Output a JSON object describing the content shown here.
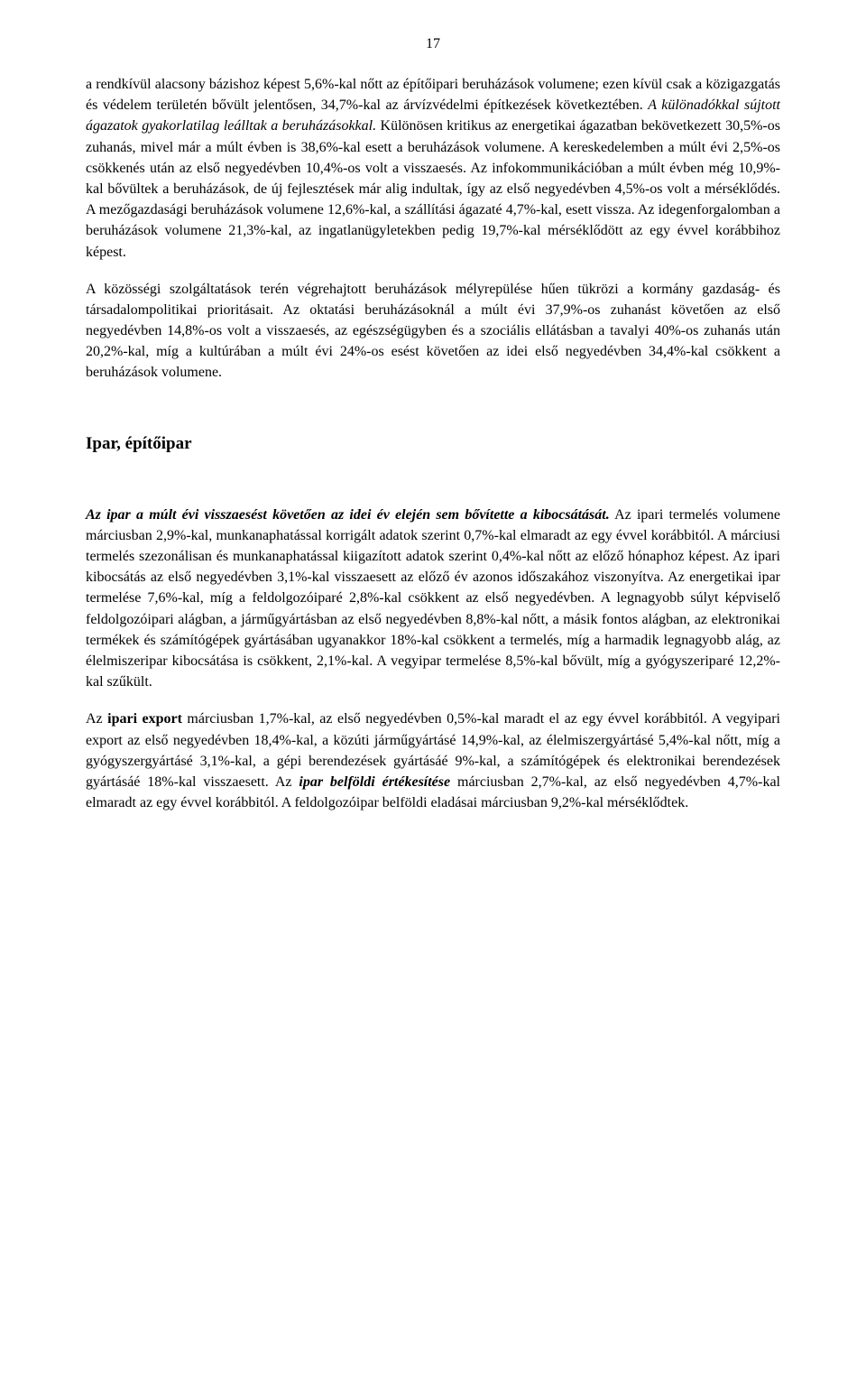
{
  "page_number": "17",
  "para1": {
    "t1": "a rendkívül alacsony bázishoz képest 5,6%-kal nőtt az építőipari beruházások volumene; ezen kívül csak a közigazgatás és védelem területén bővült jelentősen, 34,7%-kal az árvízvédelmi építkezések következtében. ",
    "t2_italic": "A különadókkal sújtott ágazatok gyakorlatilag leálltak a beruházásokkal.",
    "t3": " Különösen kritikus az energetikai ágazatban bekövetkezett 30,5%-os zuhanás, mivel már a múlt évben is 38,6%-kal esett a beruházások volumene. A kereskedelemben a múlt évi 2,5%-os csökkenés után az első negyedévben 10,4%-os volt a visszaesés. Az infokommunikációban a múlt évben még 10,9%-kal bővültek a beruházások, de új fejlesztések már alig indultak, így az első negyedévben 4,5%-os volt a mérséklődés. A mezőgazdasági beruházások volumene 12,6%-kal, a szállítási ágazaté 4,7%-kal, esett vissza. Az idegenforgalomban a beruházások volumene 21,3%-kal, az ingatlanügyletekben pedig 19,7%-kal mérséklődött az egy évvel korábbihoz képest."
  },
  "para2": "A közösségi szolgáltatások terén végrehajtott beruházások mélyrepülése hűen tükrözi a kormány gazdaság- és társadalompolitikai prioritásait. Az oktatási beruházásoknál a múlt évi 37,9%-os zuhanást követően az első negyedévben 14,8%-os volt a visszaesés, az egészségügyben és a szociális ellátásban a tavalyi 40%-os zuhanás után 20,2%-kal, míg a kultúrában a múlt évi 24%-os esést követően az idei első negyedévben 34,4%-kal csökkent a beruházások volumene.",
  "section_heading": "Ipar, építőipar",
  "para3": {
    "t1_bolditalic": "Az ipar a múlt évi visszaesést követően az idei év elején sem bővítette a kibocsátását.",
    "t2": " Az ipari termelés volumene márciusban 2,9%-kal, munkanaphatással korrigált adatok szerint 0,7%-kal elmaradt az egy évvel korábbitól. A márciusi termelés szezonálisan és munkanaphatással kiigazított adatok szerint 0,4%-kal nőtt az előző hónaphoz képest. Az ipari kibocsátás az első negyedévben 3,1%-kal visszaesett az előző év azonos időszakához viszonyítva. Az energetikai ipar termelése 7,6%-kal, míg a feldolgozóiparé 2,8%-kal csökkent az első negyedévben. A legnagyobb súlyt képviselő feldolgozóipari alágban, a járműgyártásban az első negyedévben 8,8%-kal nőtt, a másik fontos alágban, az elektronikai termékek és számítógépek gyártásában ugyanakkor 18%-kal csökkent a termelés, míg a harmadik legnagyobb alág, az élelmiszeripar kibocsátása is csökkent, 2,1%-kal. A vegyipar termelése 8,5%-kal bővült, míg a gyógyszeriparé 12,2%-kal szűkült."
  },
  "para4": {
    "t1": "Az ",
    "t2_bold": "ipari export",
    "t3": " márciusban 1,7%-kal, az első negyedévben 0,5%-kal maradt el az egy évvel korábbitól. A vegyipari export az első negyedévben 18,4%-kal, a közúti járműgyártásé 14,9%-kal, az élelmiszergyártásé 5,4%-kal nőtt, míg a gyógyszergyártásé 3,1%-kal, a gépi berendezések gyártásáé 9%-kal, a számítógépek és elektronikai berendezések gyártásáé 18%-kal visszaesett. Az ",
    "t4_bolditalic": "ipar belföldi értékesítése",
    "t5": " márciusban 2,7%-kal, az első negyedévben 4,7%-kal elmaradt az egy évvel korábbitól. A feldolgozóipar belföldi eladásai márciusban 9,2%-kal mérséklődtek."
  }
}
